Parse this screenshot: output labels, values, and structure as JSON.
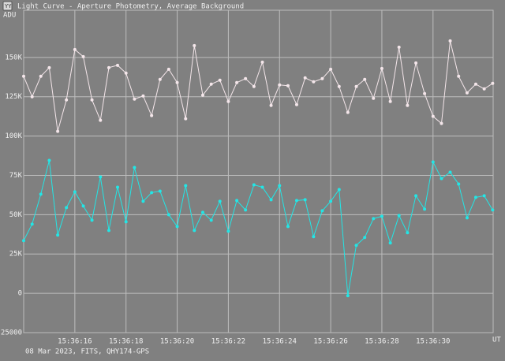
{
  "chart_data": {
    "type": "line",
    "title": "Light Curve - Aperture Photometry, Average Background",
    "y_label": "ADU",
    "x_label": "UT",
    "footer": "08 Mar 2023, FITS, QHY174-GPS",
    "grid": true,
    "xlim": [
      14,
      32.35
    ],
    "xticks": [
      {
        "value": 16,
        "label": "15:36:16"
      },
      {
        "value": 18,
        "label": "15:36:18"
      },
      {
        "value": 20,
        "label": "15:36:20"
      },
      {
        "value": 22,
        "label": "15:36:22"
      },
      {
        "value": 24,
        "label": "15:36:24"
      },
      {
        "value": 26,
        "label": "15:36:26"
      },
      {
        "value": 28,
        "label": "15:36:28"
      },
      {
        "value": 30,
        "label": "15:36:30"
      }
    ],
    "ylim": [
      -25000,
      180000
    ],
    "yticks": [
      {
        "value": -25000,
        "label": "-25000"
      },
      0,
      {
        "value": 25000,
        "label": "25K"
      },
      {
        "value": 50000,
        "label": "50K"
      },
      {
        "value": 75000,
        "label": "75K"
      },
      {
        "value": 100000,
        "label": "100K"
      },
      {
        "value": 125000,
        "label": "125K"
      },
      {
        "value": 150000,
        "label": "150K"
      }
    ],
    "x": [
      14,
      14.33,
      14.67,
      15,
      15.33,
      15.67,
      16,
      16.33,
      16.67,
      17,
      17.33,
      17.67,
      18,
      18.33,
      18.67,
      19,
      19.33,
      19.67,
      20,
      20.33,
      20.67,
      21,
      21.33,
      21.67,
      22,
      22.33,
      22.67,
      23,
      23.33,
      23.67,
      24,
      24.33,
      24.67,
      25,
      25.33,
      25.67,
      26,
      26.33,
      26.67,
      27,
      27.33,
      27.67,
      28,
      28.33,
      28.67,
      29,
      29.33,
      29.67,
      30,
      30.33,
      30.67,
      31,
      31.33,
      31.67,
      32,
      32.33
    ],
    "series": [
      {
        "color": "#f4e6ea",
        "values": [
          138000,
          125000,
          138000,
          143500,
          103000,
          123000,
          155000,
          150500,
          123000,
          110000,
          143500,
          145000,
          140000,
          123500,
          125500,
          113000,
          136000,
          142500,
          134000,
          111000,
          157500,
          126000,
          133000,
          135500,
          122000,
          134000,
          136500,
          131500,
          147000,
          119500,
          132500,
          132000,
          120000,
          137000,
          134500,
          136500,
          142500,
          131500,
          115000,
          131500,
          136000,
          124000,
          143000,
          122000,
          156500,
          119500,
          146500,
          127000,
          112500,
          108000,
          160500,
          138000,
          127500,
          133000,
          130000,
          133500
        ]
      },
      {
        "color": "#22e6e6",
        "values": [
          33500,
          44000,
          63000,
          84500,
          37000,
          54500,
          64500,
          55500,
          46500,
          74000,
          40000,
          67500,
          45500,
          80000,
          58500,
          64000,
          65000,
          50000,
          42500,
          68500,
          40000,
          51500,
          46500,
          58500,
          39500,
          59000,
          53000,
          69000,
          67500,
          59500,
          68500,
          42500,
          59000,
          59500,
          36000,
          52500,
          58500,
          66000,
          -1500,
          30500,
          35500,
          47500,
          49000,
          32000,
          49500,
          38500,
          62000,
          53500,
          83500,
          73000,
          77000,
          69500,
          48000,
          61000,
          62000,
          53000
        ]
      }
    ]
  }
}
